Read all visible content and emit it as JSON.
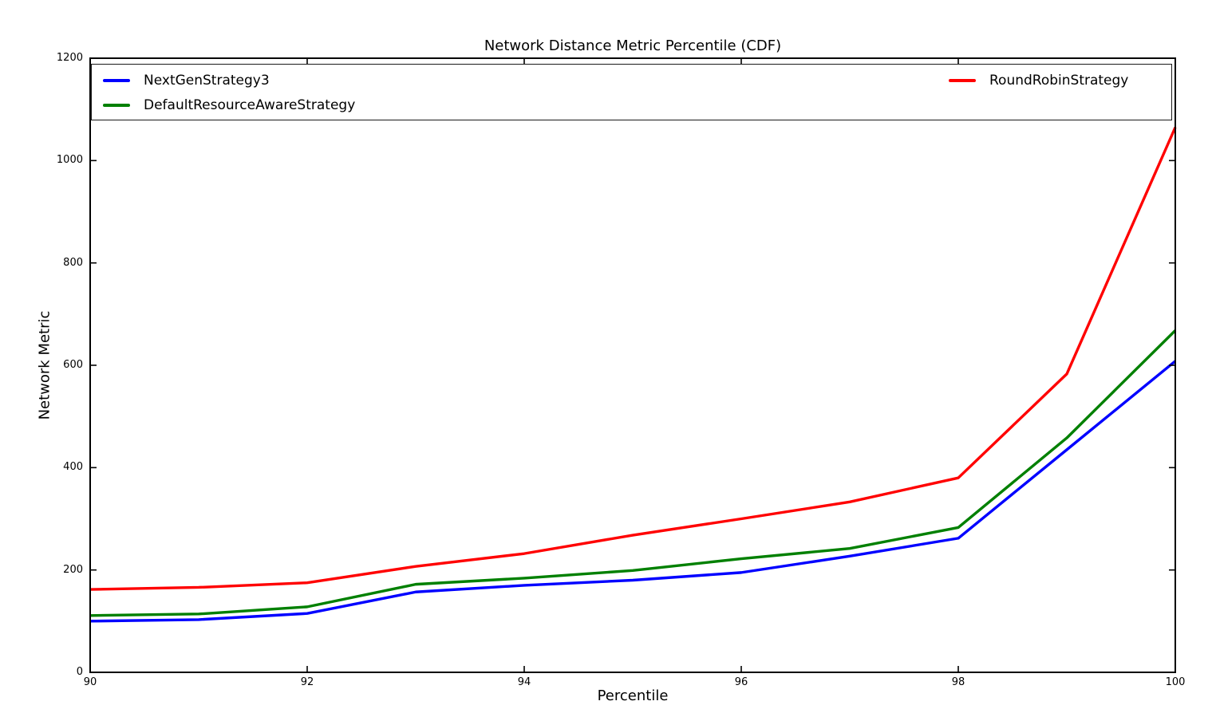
{
  "figure": {
    "title": "Network Distance Metric Percentile (CDF)",
    "xlabel": "Percentile",
    "ylabel": "Network Metric"
  },
  "chart_data": {
    "type": "line",
    "title": "Network Distance Metric Percentile (CDF)",
    "xlabel": "Percentile",
    "ylabel": "Network Metric",
    "xlim": [
      90,
      100
    ],
    "ylim": [
      0,
      1200
    ],
    "x_ticks": [
      "90",
      "92",
      "94",
      "96",
      "98",
      "100"
    ],
    "x_tick_values": [
      90,
      92,
      94,
      96,
      98,
      100
    ],
    "y_ticks": [
      "0",
      "200",
      "400",
      "600",
      "800",
      "1000",
      "1200"
    ],
    "y_tick_values": [
      0,
      200,
      400,
      600,
      800,
      1000,
      1200
    ],
    "grid": false,
    "legend_position": "upper, 2 columns, full-width framed box",
    "x": [
      90,
      91,
      92,
      93,
      94,
      95,
      96,
      97,
      98,
      99,
      100
    ],
    "series": [
      {
        "name": "NextGenStrategy3",
        "color": "#0000ff",
        "values": [
          100,
          103,
          115,
          157,
          170,
          180,
          195,
          227,
          262,
          435,
          608
        ]
      },
      {
        "name": "DefaultResourceAwareStrategy",
        "color": "#008000",
        "values": [
          111,
          114,
          128,
          172,
          184,
          199,
          222,
          242,
          283,
          458,
          668
        ]
      },
      {
        "name": "RoundRobinStrategy",
        "color": "#ff0000",
        "values": [
          162,
          166,
          175,
          207,
          232,
          268,
          300,
          333,
          380,
          583,
          1065
        ]
      }
    ]
  }
}
